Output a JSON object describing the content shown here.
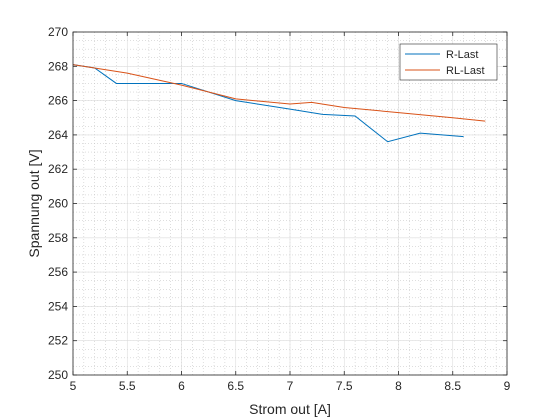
{
  "chart_data": {
    "type": "line",
    "title": "",
    "xlabel": "Strom out [A]",
    "ylabel": "Spannung out [V]",
    "xlim": [
      5,
      9
    ],
    "ylim": [
      250,
      270
    ],
    "xticks": [
      5,
      5.5,
      6,
      6.5,
      7,
      7.5,
      8,
      8.5,
      9
    ],
    "yticks": [
      250,
      252,
      254,
      256,
      258,
      260,
      262,
      264,
      266,
      268,
      270
    ],
    "x_tick_labels": [
      "5",
      "5.5",
      "6",
      "6.5",
      "7",
      "7.5",
      "8",
      "8.5",
      "9"
    ],
    "y_tick_labels": [
      "250",
      "252",
      "254",
      "256",
      "258",
      "260",
      "262",
      "264",
      "266",
      "268",
      "270"
    ],
    "grid": true,
    "minor_grid": true,
    "legend_position": "top-right",
    "series": [
      {
        "name": "R-Last",
        "color": "#0072BD",
        "x": [
          5.0,
          5.2,
          5.4,
          6.0,
          6.5,
          7.0,
          7.3,
          7.6,
          7.9,
          8.2,
          8.6
        ],
        "y": [
          268.1,
          267.9,
          267.0,
          267.0,
          266.0,
          265.5,
          265.2,
          265.1,
          263.6,
          264.1,
          263.9
        ]
      },
      {
        "name": "RL-Last",
        "color": "#D95319",
        "x": [
          5.0,
          5.5,
          6.0,
          6.5,
          7.0,
          7.2,
          7.5,
          8.0,
          8.5,
          8.8
        ],
        "y": [
          268.1,
          267.6,
          266.9,
          266.1,
          265.8,
          265.9,
          265.6,
          265.3,
          265.0,
          264.8
        ]
      }
    ]
  }
}
